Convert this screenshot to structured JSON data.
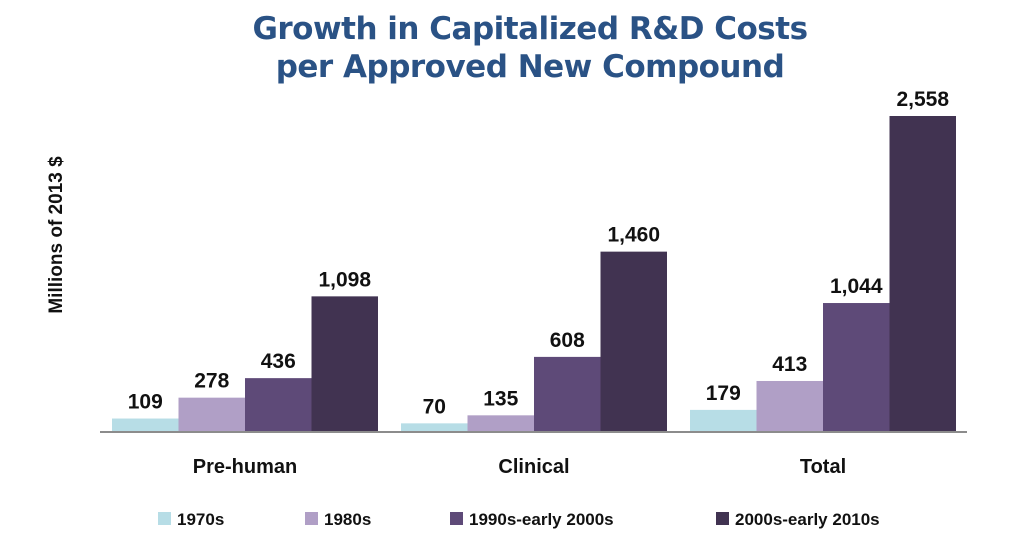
{
  "chart_data": {
    "type": "bar",
    "title": "Growth in Capitalized R&D Costs per Approved New Compound",
    "title_lines": [
      "Growth in Capitalized R&D Costs",
      "per Approved New Compound"
    ],
    "xlabel": "",
    "ylabel": "Millions of 2013 $",
    "ylim": [
      0,
      2558
    ],
    "grid": false,
    "legend_position": "bottom",
    "categories": [
      "Pre-human",
      "Clinical",
      "Total"
    ],
    "series": [
      {
        "name": "1970s",
        "color": "#b7dde6",
        "values": [
          109,
          70,
          179
        ],
        "labels": [
          "109",
          "70",
          "179"
        ]
      },
      {
        "name": "1980s",
        "color": "#b09fc6",
        "values": [
          278,
          135,
          413
        ],
        "labels": [
          "278",
          "135",
          "413"
        ]
      },
      {
        "name": "1990s-early 2000s",
        "color": "#5e4a78",
        "values": [
          436,
          608,
          1044
        ],
        "labels": [
          "436",
          "608",
          "1,044"
        ]
      },
      {
        "name": "2000s-early 2010s",
        "color": "#413351",
        "values": [
          1098,
          1460,
          2558
        ],
        "labels": [
          "1,098",
          "1,460",
          "2,558"
        ]
      }
    ]
  }
}
